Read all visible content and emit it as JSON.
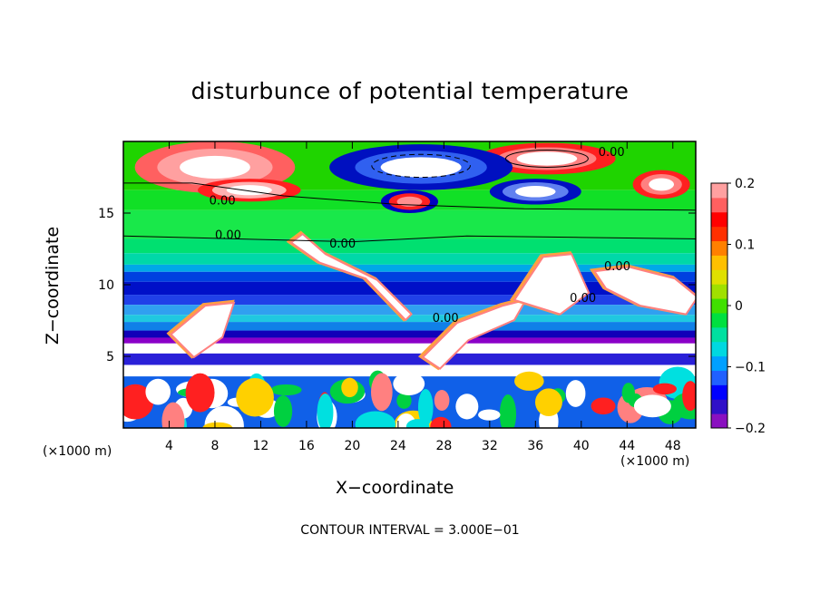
{
  "chart_data": {
    "type": "heatmap",
    "title": "disturbunce of potential temperature",
    "xlabel": "X−coordinate",
    "ylabel": "Z−coordinate",
    "x_unit_left": "(×1000 m)",
    "x_unit_right": "(×1000 m)",
    "xlim": [
      0,
      50
    ],
    "ylim": [
      0,
      20
    ],
    "xticks": [
      4,
      8,
      12,
      16,
      20,
      24,
      28,
      32,
      36,
      40,
      44,
      48
    ],
    "yticks": [
      5,
      10,
      15
    ],
    "colorbar": {
      "ticks": [
        "0.2",
        "0.1",
        "0",
        "−0.1",
        "−0.2"
      ],
      "values": [
        0.2,
        0.1,
        0,
        -0.1,
        -0.2
      ],
      "range": [
        -0.2,
        0.2
      ]
    },
    "contour_labels": [
      "0.00",
      "0.00",
      "0.00",
      "0.00",
      "0.00",
      "0.00",
      "0.00"
    ],
    "note": "CONTOUR INTERVAL = 3.000E−01"
  }
}
